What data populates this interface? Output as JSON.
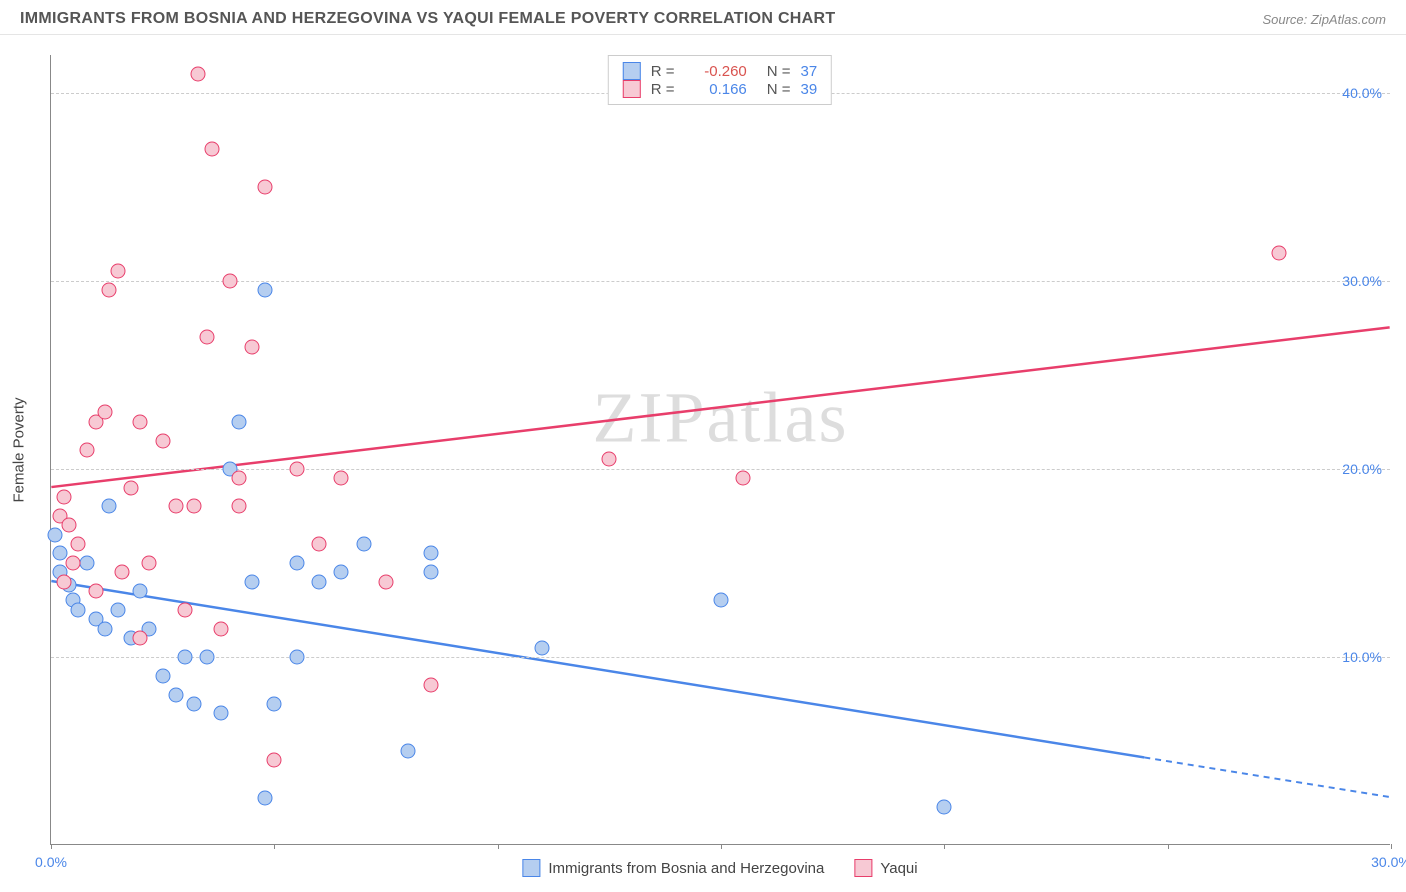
{
  "title": "IMMIGRANTS FROM BOSNIA AND HERZEGOVINA VS YAQUI FEMALE POVERTY CORRELATION CHART",
  "source": "Source: ZipAtlas.com",
  "watermark": "ZIPatlas",
  "chart": {
    "type": "scatter",
    "ylabel": "Female Poverty",
    "xlim": [
      0,
      30
    ],
    "ylim": [
      0,
      42
    ],
    "ytick_values": [
      10,
      20,
      30,
      40
    ],
    "ytick_labels": [
      "10.0%",
      "20.0%",
      "30.0%",
      "40.0%"
    ],
    "xtick_values": [
      0,
      5,
      10,
      15,
      20,
      25,
      30
    ],
    "xtick_labels": [
      "0.0%",
      "",
      "",
      "",
      "",
      "",
      "30.0%"
    ],
    "grid_color": "#cccccc",
    "background_color": "#ffffff",
    "marker_radius": 7.5,
    "series": [
      {
        "name": "Immigrants from Bosnia and Herzegovina",
        "color_fill": "#b5cef0",
        "color_stroke": "#4a86e8",
        "r": "-0.260",
        "n": "37",
        "trend": {
          "x1": 0,
          "y1": 14.0,
          "x2": 30,
          "y2": 2.5,
          "solid_until_x": 24.5
        },
        "points": [
          {
            "x": 0.1,
            "y": 16.5
          },
          {
            "x": 0.2,
            "y": 15.5
          },
          {
            "x": 0.2,
            "y": 14.5
          },
          {
            "x": 0.4,
            "y": 13.8
          },
          {
            "x": 0.5,
            "y": 13.0
          },
          {
            "x": 0.6,
            "y": 12.5
          },
          {
            "x": 0.8,
            "y": 15.0
          },
          {
            "x": 1.0,
            "y": 12.0
          },
          {
            "x": 1.2,
            "y": 11.5
          },
          {
            "x": 1.3,
            "y": 18.0
          },
          {
            "x": 1.5,
            "y": 12.5
          },
          {
            "x": 1.8,
            "y": 11.0
          },
          {
            "x": 2.0,
            "y": 13.5
          },
          {
            "x": 2.2,
            "y": 11.5
          },
          {
            "x": 2.5,
            "y": 9.0
          },
          {
            "x": 2.8,
            "y": 8.0
          },
          {
            "x": 3.0,
            "y": 10.0
          },
          {
            "x": 3.2,
            "y": 7.5
          },
          {
            "x": 3.5,
            "y": 10.0
          },
          {
            "x": 3.8,
            "y": 7.0
          },
          {
            "x": 4.0,
            "y": 20.0
          },
          {
            "x": 4.2,
            "y": 22.5
          },
          {
            "x": 4.5,
            "y": 14.0
          },
          {
            "x": 4.8,
            "y": 29.5
          },
          {
            "x": 4.8,
            "y": 2.5
          },
          {
            "x": 5.0,
            "y": 7.5
          },
          {
            "x": 5.5,
            "y": 10.0
          },
          {
            "x": 5.5,
            "y": 15.0
          },
          {
            "x": 6.0,
            "y": 14.0
          },
          {
            "x": 6.5,
            "y": 14.5
          },
          {
            "x": 7.0,
            "y": 16.0
          },
          {
            "x": 8.0,
            "y": 5.0
          },
          {
            "x": 8.5,
            "y": 14.5
          },
          {
            "x": 8.5,
            "y": 15.5
          },
          {
            "x": 11.0,
            "y": 10.5
          },
          {
            "x": 15.0,
            "y": 13.0
          },
          {
            "x": 20.0,
            "y": 2.0
          }
        ]
      },
      {
        "name": "Yaqui",
        "color_fill": "#f7c9d4",
        "color_stroke": "#e83e6b",
        "r": "0.166",
        "n": "39",
        "trend": {
          "x1": 0,
          "y1": 19.0,
          "x2": 30,
          "y2": 27.5,
          "solid_until_x": 30
        },
        "points": [
          {
            "x": 0.2,
            "y": 17.5
          },
          {
            "x": 0.3,
            "y": 18.5
          },
          {
            "x": 0.4,
            "y": 17.0
          },
          {
            "x": 0.5,
            "y": 15.0
          },
          {
            "x": 0.6,
            "y": 16.0
          },
          {
            "x": 0.8,
            "y": 21.0
          },
          {
            "x": 1.0,
            "y": 22.5
          },
          {
            "x": 1.2,
            "y": 23.0
          },
          {
            "x": 1.3,
            "y": 29.5
          },
          {
            "x": 1.5,
            "y": 30.5
          },
          {
            "x": 1.8,
            "y": 19.0
          },
          {
            "x": 2.0,
            "y": 22.5
          },
          {
            "x": 2.2,
            "y": 15.0
          },
          {
            "x": 2.5,
            "y": 21.5
          },
          {
            "x": 2.8,
            "y": 18.0
          },
          {
            "x": 3.0,
            "y": 12.5
          },
          {
            "x": 3.2,
            "y": 18.0
          },
          {
            "x": 3.3,
            "y": 41.0
          },
          {
            "x": 3.5,
            "y": 27.0
          },
          {
            "x": 3.6,
            "y": 37.0
          },
          {
            "x": 3.8,
            "y": 11.5
          },
          {
            "x": 4.0,
            "y": 30.0
          },
          {
            "x": 4.2,
            "y": 19.5
          },
          {
            "x": 4.2,
            "y": 18.0
          },
          {
            "x": 4.5,
            "y": 26.5
          },
          {
            "x": 4.8,
            "y": 35.0
          },
          {
            "x": 5.0,
            "y": 4.5
          },
          {
            "x": 5.5,
            "y": 20.0
          },
          {
            "x": 6.0,
            "y": 16.0
          },
          {
            "x": 6.5,
            "y": 19.5
          },
          {
            "x": 7.5,
            "y": 14.0
          },
          {
            "x": 8.5,
            "y": 8.5
          },
          {
            "x": 12.5,
            "y": 20.5
          },
          {
            "x": 15.5,
            "y": 19.5
          },
          {
            "x": 27.5,
            "y": 31.5
          },
          {
            "x": 0.3,
            "y": 14.0
          },
          {
            "x": 1.0,
            "y": 13.5
          },
          {
            "x": 1.6,
            "y": 14.5
          },
          {
            "x": 2.0,
            "y": 11.0
          }
        ]
      }
    ]
  },
  "legend_bottom": [
    {
      "label": "Immigrants from Bosnia and Herzegovina",
      "fill": "#b5cef0",
      "stroke": "#4a86e8"
    },
    {
      "label": "Yaqui",
      "fill": "#f7c9d4",
      "stroke": "#e83e6b"
    }
  ]
}
